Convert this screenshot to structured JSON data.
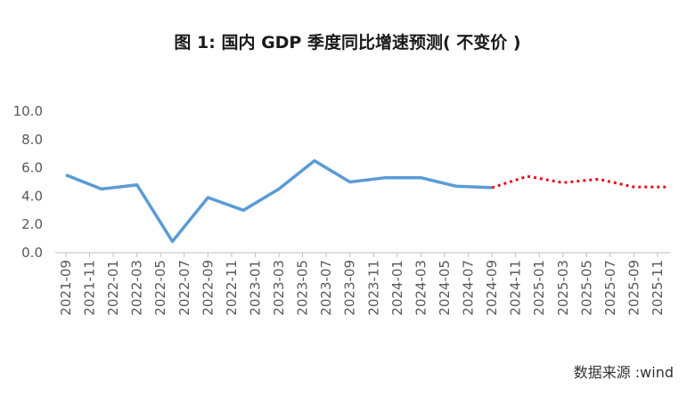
{
  "title": "图 1: 国内 GDP 季度同比增速预测( 不变价 )",
  "source": "数据来源 :wind",
  "chart_data": {
    "type": "line",
    "title": "图 1: 国内 GDP 季度同比增速预测( 不变价 )",
    "xlabel": "",
    "ylabel": "",
    "ylim": [
      0,
      10
    ],
    "yticks": [
      "0.0",
      "2.0",
      "4.0",
      "6.0",
      "8.0",
      "10.0"
    ],
    "grid": false,
    "legend": "none",
    "categories": [
      "2021-09",
      "2021-11",
      "2022-01",
      "2022-03",
      "2022-05",
      "2022-07",
      "2022-09",
      "2022-11",
      "2023-01",
      "2023-03",
      "2023-05",
      "2023-07",
      "2023-09",
      "2023-11",
      "2024-01",
      "2024-03",
      "2024-05",
      "2024-07",
      "2024-09",
      "2024-11",
      "2025-01",
      "2025-03",
      "2025-05",
      "2025-07",
      "2025-09",
      "2025-11"
    ],
    "series": [
      {
        "style": "solid",
        "color": "#5b9bd5",
        "points": [
          {
            "x": "2021-09",
            "y": 5.5
          },
          {
            "x": "2021-12",
            "y": 4.5
          },
          {
            "x": "2022-03",
            "y": 4.8
          },
          {
            "x": "2022-06",
            "y": 0.8
          },
          {
            "x": "2022-09",
            "y": 3.9
          },
          {
            "x": "2022-12",
            "y": 3.0
          },
          {
            "x": "2023-03",
            "y": 4.5
          },
          {
            "x": "2023-06",
            "y": 6.5
          },
          {
            "x": "2023-09",
            "y": 5.0
          },
          {
            "x": "2023-12",
            "y": 5.3
          },
          {
            "x": "2024-03",
            "y": 5.3
          },
          {
            "x": "2024-06",
            "y": 4.7
          },
          {
            "x": "2024-09",
            "y": 4.6
          }
        ]
      },
      {
        "style": "dotted",
        "color": "#e0101e",
        "points": [
          {
            "x": "2024-09",
            "y": 4.6
          },
          {
            "x": "2024-12",
            "y": 5.4
          },
          {
            "x": "2025-03",
            "y": 4.95
          },
          {
            "x": "2025-06",
            "y": 5.2
          },
          {
            "x": "2025-09",
            "y": 4.65
          },
          {
            "x": "2025-12",
            "y": 4.65
          }
        ]
      }
    ]
  }
}
